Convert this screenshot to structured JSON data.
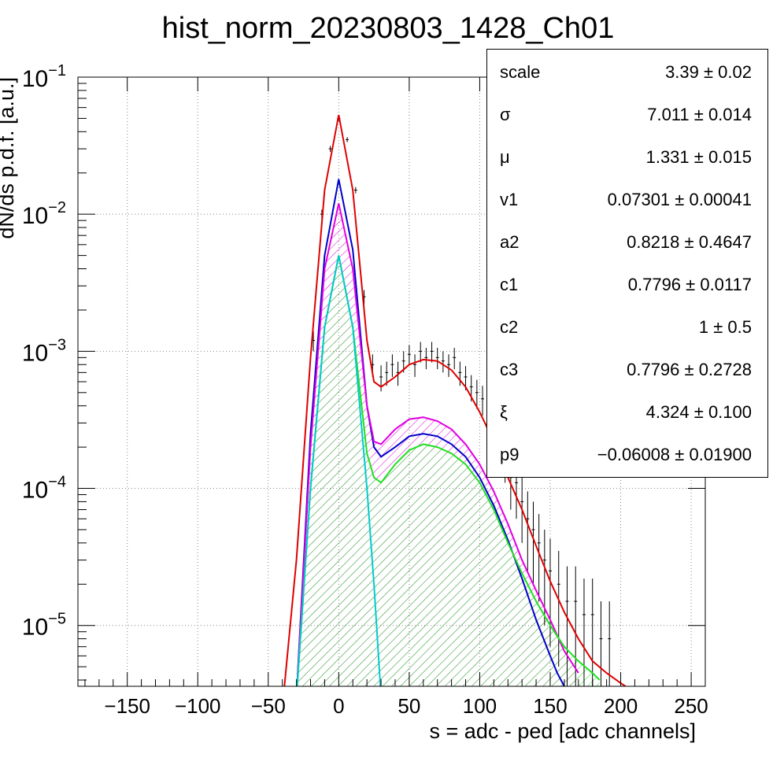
{
  "chart_data": {
    "type": "line",
    "title": "hist_norm_20230803_1428_Ch01",
    "xlabel": "s = adc - ped [adc channels]",
    "ylabel": "dN/ds p.d.f. [a.u.]",
    "xlim": [
      -185,
      260
    ],
    "ylim": [
      3.6e-06,
      0.1
    ],
    "yscale": "log",
    "grid": true,
    "x_ticks": [
      "−150",
      "−100",
      "−50",
      "0",
      "50",
      "100",
      "150",
      "200",
      "250"
    ],
    "x_tick_values": [
      -150,
      -100,
      -50,
      0,
      50,
      100,
      150,
      200,
      250
    ],
    "y_tick_bases": [
      "10",
      "10",
      "10",
      "10",
      "10"
    ],
    "y_tick_exps": [
      "−5",
      "−4",
      "−3",
      "−2",
      "−1"
    ],
    "y_tick_values": [
      1e-05,
      0.0001,
      0.001,
      0.01,
      0.1
    ],
    "series": [
      {
        "color": "#e00000",
        "x": [
          -40,
          -30,
          -20,
          -10,
          0,
          10,
          20,
          25,
          30,
          40,
          50,
          60,
          70,
          80,
          90,
          100,
          110,
          120,
          130,
          140,
          150,
          160,
          170,
          180,
          190,
          200,
          215
        ],
        "y": [
          2.5e-06,
          3e-05,
          0.0009,
          0.015,
          0.053,
          0.015,
          0.0012,
          0.0006,
          0.00055,
          0.00065,
          0.0008,
          0.00087,
          0.00085,
          0.00073,
          0.00055,
          0.00036,
          0.00022,
          0.00012,
          7e-05,
          3.8e-05,
          2.1e-05,
          1.25e-05,
          8e-06,
          5.5e-06,
          4.5e-06,
          3.8e-06,
          3e-06
        ]
      },
      {
        "color": "#0000c8",
        "x": [
          -30,
          -20,
          -10,
          0,
          10,
          20,
          25,
          30,
          40,
          50,
          60,
          70,
          80,
          90,
          100,
          110,
          120,
          130,
          140,
          150,
          155,
          160
        ],
        "y": [
          3e-06,
          0.00025,
          0.005,
          0.018,
          0.0055,
          0.0004,
          0.0002,
          0.00017,
          0.0002,
          0.00024,
          0.00025,
          0.00024,
          0.00021,
          0.00017,
          0.00012,
          7.5e-05,
          4.2e-05,
          2.2e-05,
          1.1e-05,
          6e-06,
          4.5e-06,
          3.6e-06
        ]
      },
      {
        "color": "#e000e0",
        "x": [
          -30,
          -20,
          -10,
          0,
          10,
          20,
          25,
          30,
          40,
          50,
          60,
          70,
          80,
          90,
          100,
          110,
          120,
          130,
          140,
          150,
          160,
          170
        ],
        "y": [
          3e-06,
          0.0002,
          0.004,
          0.012,
          0.004,
          0.0004,
          0.00022,
          0.00021,
          0.00027,
          0.00032,
          0.00033,
          0.00031,
          0.00027,
          0.00021,
          0.00015,
          9.5e-05,
          5.5e-05,
          3e-05,
          1.8e-05,
          1.1e-05,
          6.5e-06,
          4.5e-06
        ]
      },
      {
        "color": "#20e020",
        "x": [
          -30,
          -20,
          -10,
          0,
          10,
          20,
          25,
          30,
          40,
          50,
          60,
          70,
          80,
          90,
          100,
          110,
          120,
          130,
          140,
          150,
          160,
          170,
          180,
          185
        ],
        "y": [
          3e-06,
          0.0001,
          0.0015,
          0.005,
          0.0015,
          0.00018,
          0.00012,
          0.00011,
          0.00015,
          0.00019,
          0.00021,
          0.0002,
          0.00018,
          0.00015,
          0.00011,
          7e-05,
          4e-05,
          2.4e-05,
          1.5e-05,
          1e-05,
          7e-06,
          5.5e-06,
          4.5e-06,
          4e-06
        ]
      },
      {
        "color": "#00cccc",
        "x": [
          -30,
          -20,
          -10,
          0,
          10,
          20,
          25,
          30
        ],
        "y": [
          3e-06,
          0.0001,
          0.0015,
          0.005,
          0.0015,
          0.0001,
          2e-05,
          3e-06
        ]
      }
    ],
    "data_points": {
      "x": [
        -18,
        -12,
        -6,
        0,
        6,
        12,
        18,
        24,
        30,
        34,
        38,
        42,
        46,
        50,
        54,
        58,
        62,
        66,
        70,
        74,
        78,
        82,
        86,
        90,
        94,
        98,
        102,
        106,
        110,
        114,
        118,
        122,
        126,
        130,
        134,
        138,
        142,
        146,
        150,
        156,
        162,
        168,
        174,
        180,
        186,
        192
      ],
      "y": [
        0.0012,
        0.01,
        0.03,
        0.05,
        0.035,
        0.015,
        0.0025,
        0.0008,
        0.00065,
        0.0007,
        0.0008,
        0.0007,
        0.00085,
        0.00095,
        0.0008,
        0.001,
        0.0009,
        0.001,
        0.0009,
        0.00085,
        0.0008,
        0.0009,
        0.0007,
        0.00065,
        0.00055,
        0.0005,
        0.00045,
        0.00035,
        0.0003,
        0.0002,
        0.00018,
        0.00012,
        0.00011,
        8e-05,
        6e-05,
        5e-05,
        4e-05,
        3e-05,
        2.5e-05,
        2e-05,
        1.5e-05,
        1.5e-05,
        1.2e-05,
        1.2e-05,
        8e-06,
        8e-06
      ],
      "err": [
        0.0002,
        0.0008,
        0.0015,
        0.002,
        0.0015,
        0.0008,
        0.0003,
        0.00015,
        0.00014,
        0.00014,
        0.00015,
        0.00014,
        0.00015,
        0.00016,
        0.00015,
        0.00017,
        0.00016,
        0.00017,
        0.00016,
        0.00015,
        0.00015,
        0.00016,
        0.00014,
        0.00013,
        0.00012,
        0.00012,
        0.00011,
        0.0001,
        9e-05,
        7e-05,
        7e-05,
        5e-05,
        5e-05,
        4e-05,
        3.5e-05,
        3e-05,
        2.5e-05,
        2e-05,
        1.8e-05,
        1.5e-05,
        1.2e-05,
        1.2e-05,
        1e-05,
        1e-05,
        7e-06,
        7e-06
      ]
    }
  },
  "stats": [
    {
      "name": "scale",
      "value": "3.39 ± 0.02"
    },
    {
      "name": "σ",
      "value": "7.011 ± 0.014"
    },
    {
      "name": "μ",
      "value": "1.331 ± 0.015"
    },
    {
      "name": "v1",
      "value": "0.07301 ± 0.00041"
    },
    {
      "name": "a2",
      "value": "0.8218  ± 0.4647"
    },
    {
      "name": "c1",
      "value": "0.7796  ± 0.0117"
    },
    {
      "name": "c2",
      "value": "1 ± 0.5"
    },
    {
      "name": "c3",
      "value": "0.7796  ± 0.2728"
    },
    {
      "name": "ξ",
      "value": "4.324  ± 0.100"
    },
    {
      "name": "p9",
      "value": "−0.06008  ± 0.01900"
    }
  ]
}
